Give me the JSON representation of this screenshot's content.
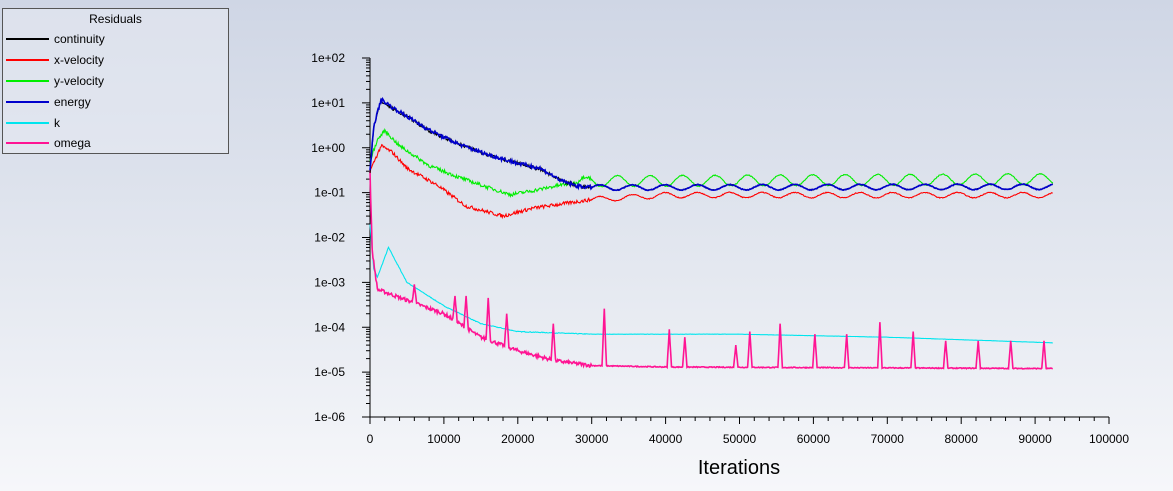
{
  "chart_data": {
    "type": "line",
    "title": "",
    "legend_title": "Residuals",
    "legend_placement": "top-left",
    "xlabel": "Iterations",
    "ylabel": "",
    "xscale": "linear",
    "yscale": "log",
    "xlim": [
      0,
      100000
    ],
    "ylim": [
      1e-06,
      100
    ],
    "xticks": [
      "0",
      "10000",
      "20000",
      "30000",
      "40000",
      "50000",
      "60000",
      "70000",
      "80000",
      "90000",
      "100000"
    ],
    "xtick_values": [
      0,
      10000,
      20000,
      30000,
      40000,
      50000,
      60000,
      70000,
      80000,
      90000,
      100000
    ],
    "yticks": [
      "1e+02",
      "1e+01",
      "1e+00",
      "1e-01",
      "1e-02",
      "1e-03",
      "1e-04",
      "1e-05",
      "1e-06"
    ],
    "ytick_values": [
      100,
      10,
      1,
      0.1,
      0.01,
      0.001,
      0.0001,
      1e-05,
      1e-06
    ],
    "grid": false,
    "last_iteration": 92400,
    "series": [
      {
        "name": "continuity",
        "color": "#000000",
        "points": [
          [
            0,
            0.3
          ],
          [
            500,
            3
          ],
          [
            1500,
            11
          ],
          [
            3000,
            7.5
          ],
          [
            5000,
            5
          ],
          [
            8000,
            2.4
          ],
          [
            12000,
            1.2
          ],
          [
            16000,
            0.7
          ],
          [
            20000,
            0.45
          ],
          [
            23000,
            0.33
          ],
          [
            26000,
            0.18
          ],
          [
            28000,
            0.14
          ],
          [
            30000,
            0.13
          ],
          [
            92400,
            0.135
          ]
        ],
        "oscillation": {
          "start": 30000,
          "period": 4400,
          "amplitude_decades": 0.06
        }
      },
      {
        "name": "x-velocity",
        "color": "#ff0000",
        "points": [
          [
            0,
            0.3
          ],
          [
            1500,
            1.1
          ],
          [
            3000,
            0.8
          ],
          [
            5000,
            0.35
          ],
          [
            9000,
            0.15
          ],
          [
            13000,
            0.05
          ],
          [
            18000,
            0.03
          ],
          [
            22000,
            0.045
          ],
          [
            30000,
            0.07
          ],
          [
            40000,
            0.088
          ],
          [
            92400,
            0.088
          ]
        ],
        "oscillation": {
          "start": 30000,
          "period": 4400,
          "amplitude_decades": 0.06
        }
      },
      {
        "name": "y-velocity",
        "color": "#00ee00",
        "points": [
          [
            0,
            0.5
          ],
          [
            1000,
            1.5
          ],
          [
            2000,
            2.4
          ],
          [
            4000,
            1.1
          ],
          [
            8000,
            0.4
          ],
          [
            12000,
            0.22
          ],
          [
            16000,
            0.13
          ],
          [
            19000,
            0.09
          ],
          [
            22000,
            0.11
          ],
          [
            26000,
            0.15
          ],
          [
            30000,
            0.18
          ],
          [
            92400,
            0.2
          ]
        ],
        "oscillation": {
          "start": 28000,
          "period": 4400,
          "amplitude_decades": 0.12
        }
      },
      {
        "name": "energy",
        "color": "#0000cc",
        "points": [
          [
            0,
            0.3
          ],
          [
            500,
            3
          ],
          [
            1500,
            12
          ],
          [
            3000,
            8
          ],
          [
            5000,
            5
          ],
          [
            8000,
            2.5
          ],
          [
            12000,
            1.2
          ],
          [
            16000,
            0.7
          ],
          [
            20000,
            0.45
          ],
          [
            23000,
            0.35
          ],
          [
            26000,
            0.18
          ],
          [
            28000,
            0.14
          ],
          [
            30000,
            0.13
          ],
          [
            92400,
            0.135
          ]
        ],
        "oscillation": {
          "start": 30000,
          "period": 4400,
          "amplitude_decades": 0.06
        }
      },
      {
        "name": "k",
        "color": "#00e5ee",
        "points": [
          [
            0,
            0.02
          ],
          [
            500,
            0.002
          ],
          [
            1000,
            0.0013
          ],
          [
            2500,
            0.006
          ],
          [
            5000,
            0.001
          ],
          [
            10000,
            0.0003
          ],
          [
            15000,
            0.00012
          ],
          [
            20000,
            8e-05
          ],
          [
            30000,
            7e-05
          ],
          [
            50000,
            7e-05
          ],
          [
            70000,
            6e-05
          ],
          [
            92400,
            4.5e-05
          ]
        ],
        "oscillation": null
      },
      {
        "name": "omega",
        "color": "#ff1493",
        "points": [
          [
            0,
            0.3
          ],
          [
            300,
            0.005
          ],
          [
            1000,
            0.0007
          ],
          [
            5000,
            0.0004
          ],
          [
            10000,
            0.0002
          ],
          [
            15000,
            6e-05
          ],
          [
            20000,
            3e-05
          ],
          [
            25000,
            1.8e-05
          ],
          [
            30000,
            1.4e-05
          ],
          [
            40000,
            1.3e-05
          ],
          [
            92400,
            1.2e-05
          ]
        ],
        "oscillation": null,
        "spikes": [
          [
            6000,
            0.0009
          ],
          [
            11500,
            0.0005
          ],
          [
            13000,
            0.0005
          ],
          [
            16000,
            0.00045
          ],
          [
            18500,
            0.0002
          ],
          [
            24800,
            0.00012
          ],
          [
            31700,
            0.00026
          ],
          [
            40500,
            9e-05
          ],
          [
            42600,
            6e-05
          ],
          [
            49500,
            4e-05
          ],
          [
            51400,
            8e-05
          ],
          [
            55500,
            0.00012
          ],
          [
            60200,
            7e-05
          ],
          [
            64500,
            7e-05
          ],
          [
            69000,
            0.00013
          ],
          [
            73500,
            8e-05
          ],
          [
            77900,
            5e-05
          ],
          [
            82300,
            5e-05
          ],
          [
            86700,
            5e-05
          ],
          [
            91200,
            5e-05
          ]
        ]
      }
    ]
  }
}
